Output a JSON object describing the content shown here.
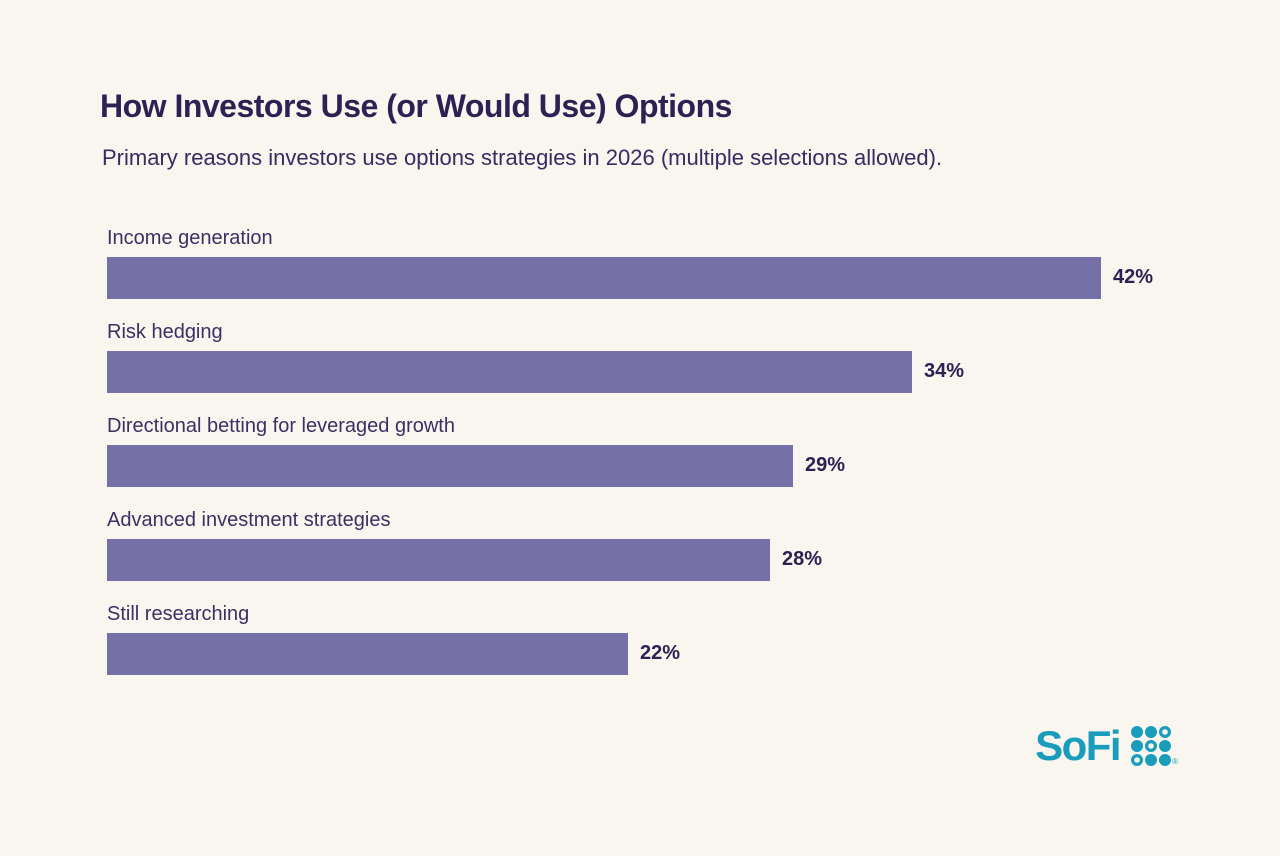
{
  "page": {
    "title": "How Investors Use (or Would Use) Options",
    "subtitle": "Primary reasons investors use options strategies in 2026 (multiple selections allowed)."
  },
  "chart_data": {
    "type": "bar",
    "orientation": "horizontal",
    "title": "How Investors Use (or Would Use) Options",
    "subtitle": "Primary reasons investors use options strategies in 2026 (multiple selections allowed).",
    "categories": [
      "Income generation",
      "Risk hedging",
      "Directional betting for leveraged growth",
      "Advanced investment strategies",
      "Still researching"
    ],
    "values": [
      42,
      34,
      29,
      28,
      22
    ],
    "value_labels": [
      "42%",
      "34%",
      "29%",
      "28%",
      "22%"
    ],
    "xlabel": "",
    "ylabel": "",
    "xlim": [
      0,
      42
    ],
    "grid": false,
    "legend": false,
    "bar_color": "#7570a8",
    "category_label_color": "#3a3163",
    "value_label_color": "#2b2153"
  },
  "branding": {
    "logo_text": "SoFi",
    "logo_color": "#1a9cbc",
    "trademark": "®"
  },
  "colors": {
    "background": "#f8f6ef",
    "title": "#2b2153"
  }
}
